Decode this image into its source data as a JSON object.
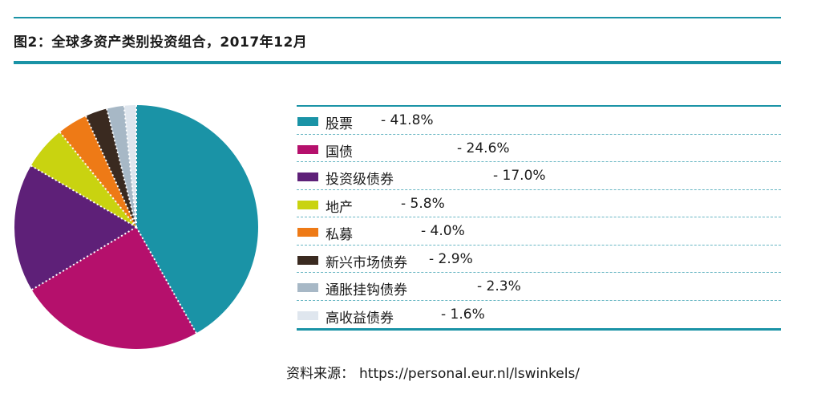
{
  "figure_title": "图2：全球多资产类别投资组合，2017年12月",
  "source": {
    "label": "资料来源：",
    "url": "https://personal.eur.nl/lswinkels/"
  },
  "chart_data": {
    "type": "pie",
    "title": "图2：全球多资产类别投资组合，2017年12月",
    "start": "12 o'clock, clockwise",
    "slices": [
      {
        "label": "股票",
        "value": 41.8,
        "value_text": "- 41.8%",
        "color": "#1a93a6"
      },
      {
        "label": "国债",
        "value": 24.6,
        "value_text": "- 24.6%",
        "color": "#b5106c"
      },
      {
        "label": "投资级债券",
        "value": 17.0,
        "value_text": "- 17.0%",
        "color": "#5e2078"
      },
      {
        "label": "地产",
        "value": 5.8,
        "value_text": "- 5.8%",
        "color": "#c9d310"
      },
      {
        "label": "私募",
        "value": 4.0,
        "value_text": "- 4.0%",
        "color": "#ee7a16"
      },
      {
        "label": "新兴市场债券",
        "value": 2.9,
        "value_text": "- 2.9%",
        "color": "#3a2a20"
      },
      {
        "label": "通胀挂钩债券",
        "value": 2.3,
        "value_text": "- 2.3%",
        "color": "#a7b8c6"
      },
      {
        "label": "高收益债券",
        "value": 1.6,
        "value_text": "- 1.6%",
        "color": "#dfe6ee"
      }
    ]
  }
}
